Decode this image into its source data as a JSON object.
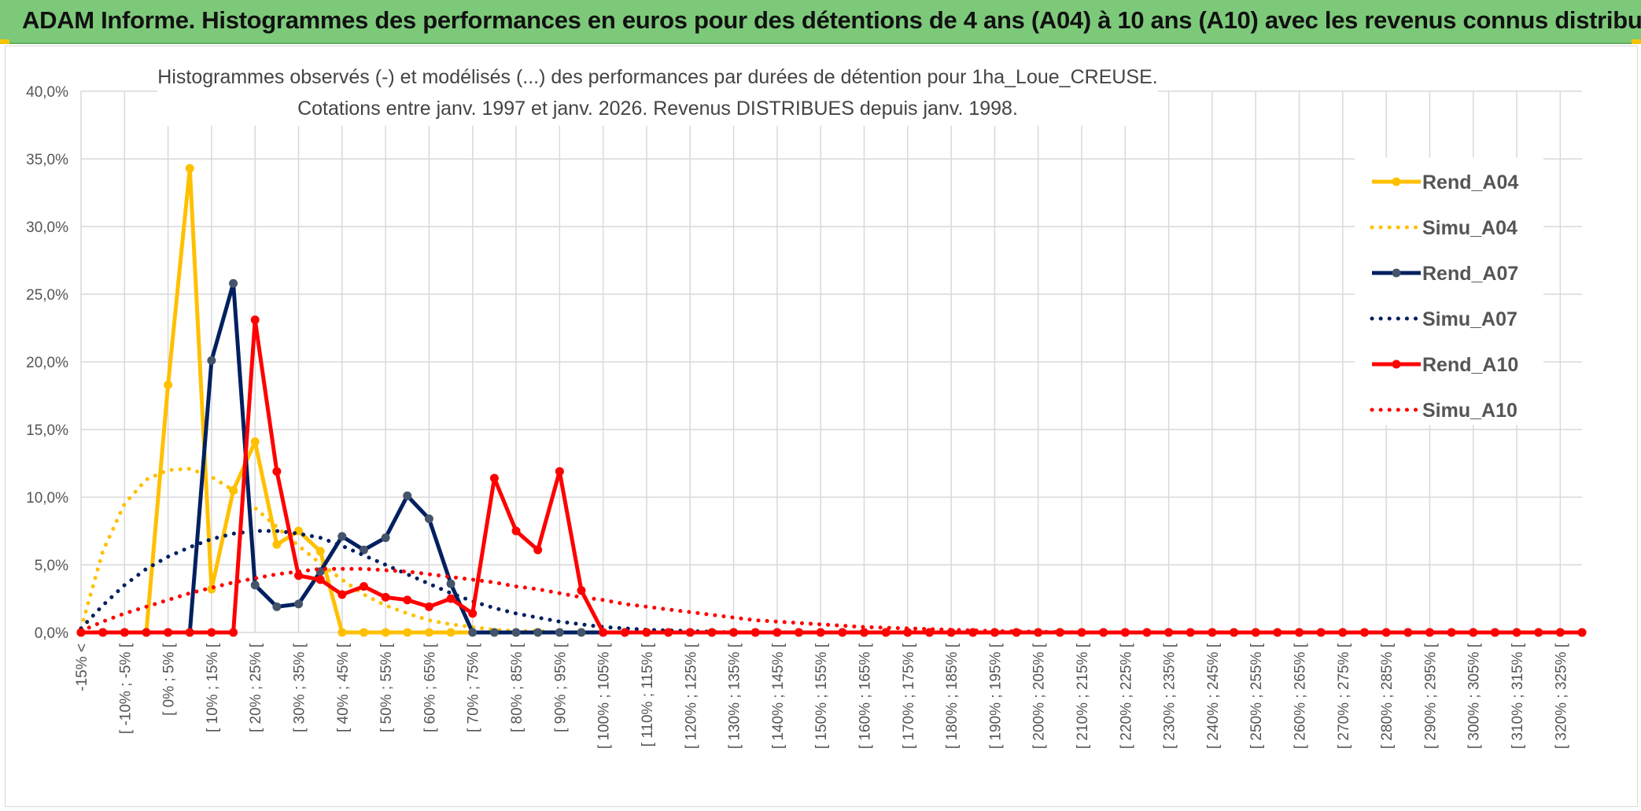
{
  "banner": {
    "title": "ADAM Informe. Histogrammes des performances en euros pour des détentions de 4 ans (A04) à 10 ans (A10) avec les revenus connus distribués"
  },
  "colors": {
    "banner": "#7dc97a",
    "A04": "#ffc000",
    "A07": "#002060",
    "A10": "#ff0000",
    "grid": "#d9d9d9"
  },
  "chart_data": {
    "type": "line",
    "title": "Histogrammes observés (-) et modélisés (...) des performances par durées de détention pour 1ha_Loue_CREUSE.",
    "subtitle": "Cotations entre janv. 1997 et janv. 2026. Revenus DISTRIBUES depuis janv. 1998.",
    "xlabel": "",
    "ylabel": "",
    "ylim": [
      0,
      40
    ],
    "yticks": [
      "0,0%",
      "5,0%",
      "10,0%",
      "15,0%",
      "20,0%",
      "25,0%",
      "30,0%",
      "35,0%",
      "40,0%"
    ],
    "grid": true,
    "legend_position": "right",
    "x_labels_visible": [
      "-15% <",
      "[ -10% ; -5% [",
      "[ 0% ; 5% [",
      "[ 10% ; 15% [",
      "[ 20% ; 25% [",
      "[ 30% ; 35% [",
      "[ 40% ; 45% [",
      "[ 50% ; 55% [",
      "[ 60% ; 65% [",
      "[ 70% ; 75% [",
      "[ 80% ; 85% [",
      "[ 90% ; 95% [",
      "[ 100% ; 105% [",
      "[ 110% ; 115% [",
      "[ 120% ; 125% [",
      "[ 130% ; 135% [",
      "[ 140% ; 145% [",
      "[ 150% ; 155% [",
      "[ 160% ; 165% [",
      "[ 170% ; 175% [",
      "[ 180% ; 185% [",
      "[ 190% ; 195% [",
      "[ 200% ; 205% [",
      "[ 210% ; 215% [",
      "[ 220% ; 225% [",
      "[ 230% ; 235% [",
      "[ 240% ; 245% [",
      "[ 250% ; 255% [",
      "[ 260% ; 265% [",
      "[ 270% ; 275% [",
      "[ 280% ; 285% [",
      "[ 290% ; 295% [",
      "[ 300% ; 305% [",
      "[ 310% ; 315% [",
      "[ 320% ; 325% ["
    ],
    "series": [
      {
        "name": "Rend_A04",
        "style": "solid",
        "color": "#ffc000",
        "values": [
          0,
          0,
          0,
          0,
          18.3,
          34.3,
          3.2,
          10.5,
          14.1,
          6.5,
          7.5,
          6.0,
          0,
          0,
          0,
          0,
          0,
          0,
          0,
          0,
          0,
          0,
          0,
          0,
          0,
          0,
          0,
          0,
          0,
          0,
          0,
          0,
          0,
          0,
          0,
          0,
          0,
          0,
          0,
          0,
          0,
          0,
          0,
          0,
          0,
          0,
          0,
          0,
          0,
          0,
          0,
          0,
          0,
          0,
          0,
          0,
          0,
          0,
          0,
          0,
          0,
          0,
          0,
          0,
          0,
          0,
          0,
          0,
          0,
          0
        ]
      },
      {
        "name": "Simu_A04",
        "style": "dotted",
        "color": "#ffc000",
        "values": [
          0.3,
          6.0,
          9.5,
          11.3,
          12.0,
          12.1,
          11.5,
          10.5,
          9.2,
          7.8,
          6.4,
          5.1,
          3.9,
          2.8,
          2.0,
          1.4,
          0.9,
          0.6,
          0.4,
          0.2,
          0.1,
          0.1,
          0,
          0,
          0,
          0,
          0,
          0,
          0,
          0,
          0,
          0,
          0,
          0,
          0,
          0,
          0,
          0,
          0,
          0,
          0,
          0,
          0,
          0,
          0,
          0,
          0,
          0,
          0,
          0,
          0,
          0,
          0,
          0,
          0,
          0,
          0,
          0,
          0,
          0,
          0,
          0,
          0,
          0,
          0,
          0,
          0,
          0,
          0,
          0
        ]
      },
      {
        "name": "Rend_A07",
        "style": "solid",
        "color": "#002060",
        "values": [
          0,
          0,
          0,
          0,
          0,
          0,
          20.1,
          25.8,
          3.5,
          1.9,
          2.1,
          4.5,
          7.1,
          6.1,
          7.0,
          10.1,
          8.4,
          3.6,
          0,
          0,
          0,
          0,
          0,
          0,
          0,
          0,
          0,
          0,
          0,
          0,
          0,
          0,
          0,
          0,
          0,
          0,
          0,
          0,
          0,
          0,
          0,
          0,
          0,
          0,
          0,
          0,
          0,
          0,
          0,
          0,
          0,
          0,
          0,
          0,
          0,
          0,
          0,
          0,
          0,
          0,
          0,
          0,
          0,
          0,
          0,
          0,
          0,
          0,
          0,
          0
        ]
      },
      {
        "name": "Simu_A07",
        "style": "dotted",
        "color": "#002060",
        "values": [
          0.3,
          2.0,
          3.5,
          4.7,
          5.6,
          6.3,
          6.9,
          7.3,
          7.5,
          7.5,
          7.3,
          7.0,
          6.4,
          5.7,
          5.0,
          4.3,
          3.6,
          2.9,
          2.3,
          1.8,
          1.4,
          1.1,
          0.8,
          0.6,
          0.4,
          0.3,
          0.2,
          0.15,
          0.1,
          0.05,
          0,
          0,
          0,
          0,
          0,
          0,
          0,
          0,
          0,
          0,
          0,
          0,
          0,
          0,
          0,
          0,
          0,
          0,
          0,
          0,
          0,
          0,
          0,
          0,
          0,
          0,
          0,
          0,
          0,
          0,
          0,
          0,
          0,
          0,
          0,
          0,
          0,
          0,
          0,
          0
        ]
      },
      {
        "name": "Rend_A10",
        "style": "solid",
        "color": "#ff0000",
        "values": [
          0,
          0,
          0,
          0,
          0,
          0,
          0,
          0,
          23.1,
          11.9,
          4.2,
          3.9,
          2.8,
          3.4,
          2.6,
          2.4,
          1.9,
          2.5,
          1.4,
          11.4,
          7.5,
          6.1,
          11.9,
          3.1,
          0,
          0,
          0,
          0,
          0,
          0,
          0,
          0,
          0,
          0,
          0,
          0,
          0,
          0,
          0,
          0,
          0,
          0,
          0,
          0,
          0,
          0,
          0,
          0,
          0,
          0,
          0,
          0,
          0,
          0,
          0,
          0,
          0,
          0,
          0,
          0,
          0,
          0,
          0,
          0,
          0,
          0,
          0,
          0,
          0,
          0
        ]
      },
      {
        "name": "Simu_A10",
        "style": "dotted",
        "color": "#ff0000",
        "values": [
          0.1,
          0.8,
          1.4,
          1.9,
          2.4,
          2.9,
          3.3,
          3.7,
          4.0,
          4.3,
          4.5,
          4.7,
          4.7,
          4.7,
          4.6,
          4.5,
          4.3,
          4.1,
          3.9,
          3.7,
          3.4,
          3.2,
          2.9,
          2.6,
          2.4,
          2.1,
          1.9,
          1.7,
          1.5,
          1.3,
          1.1,
          0.9,
          0.8,
          0.7,
          0.6,
          0.5,
          0.4,
          0.35,
          0.3,
          0.25,
          0.2,
          0.15,
          0.1,
          0.08,
          0.05,
          0.03,
          0,
          0,
          0,
          0,
          0,
          0,
          0,
          0,
          0,
          0,
          0,
          0,
          0,
          0,
          0,
          0,
          0,
          0,
          0,
          0,
          0,
          0,
          0,
          0
        ]
      }
    ]
  }
}
